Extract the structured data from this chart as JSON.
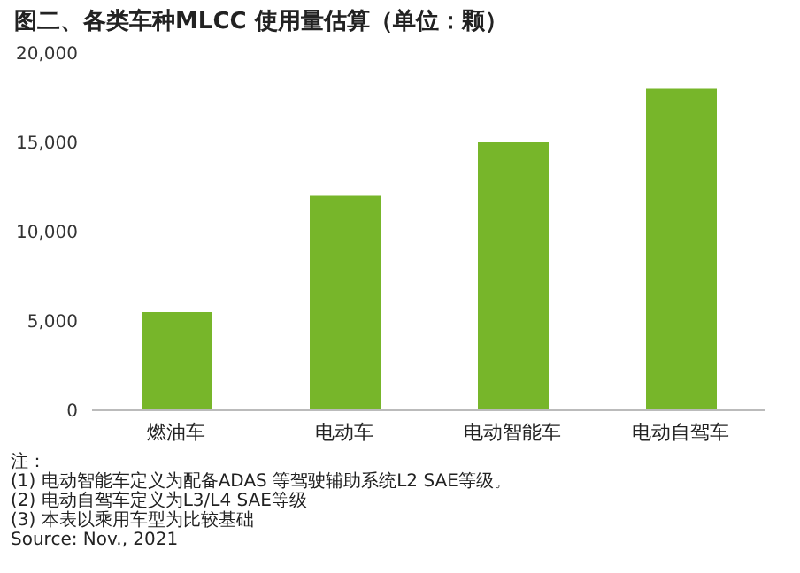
{
  "chart_data": {
    "type": "bar",
    "title": "图二、各类车种MLCC 使用量估算（单位：颗）",
    "categories": [
      "燃油车",
      "电动车",
      "电动智能车",
      "电动自驾车"
    ],
    "values": [
      5500,
      12000,
      15000,
      18000
    ],
    "color": "#77b62a",
    "ylim": [
      0,
      20000
    ],
    "yticks": [
      {
        "value": 0,
        "label": "0"
      },
      {
        "value": 5000,
        "label": "5,000"
      },
      {
        "value": 10000,
        "label": "10,000"
      },
      {
        "value": 15000,
        "label": "15,000"
      },
      {
        "value": 20000,
        "label": "20,000"
      }
    ],
    "grid": false,
    "annotations": [
      "注：",
      "(1) 电动智能车定义为配备ADAS 等驾驶辅助系统L2 SAE等级。",
      "(2) 电动自驾车定义为L3/L4 SAE等级",
      "(3) 本表以乘用车型为比较基础",
      "Source: Nov., 2021"
    ]
  }
}
